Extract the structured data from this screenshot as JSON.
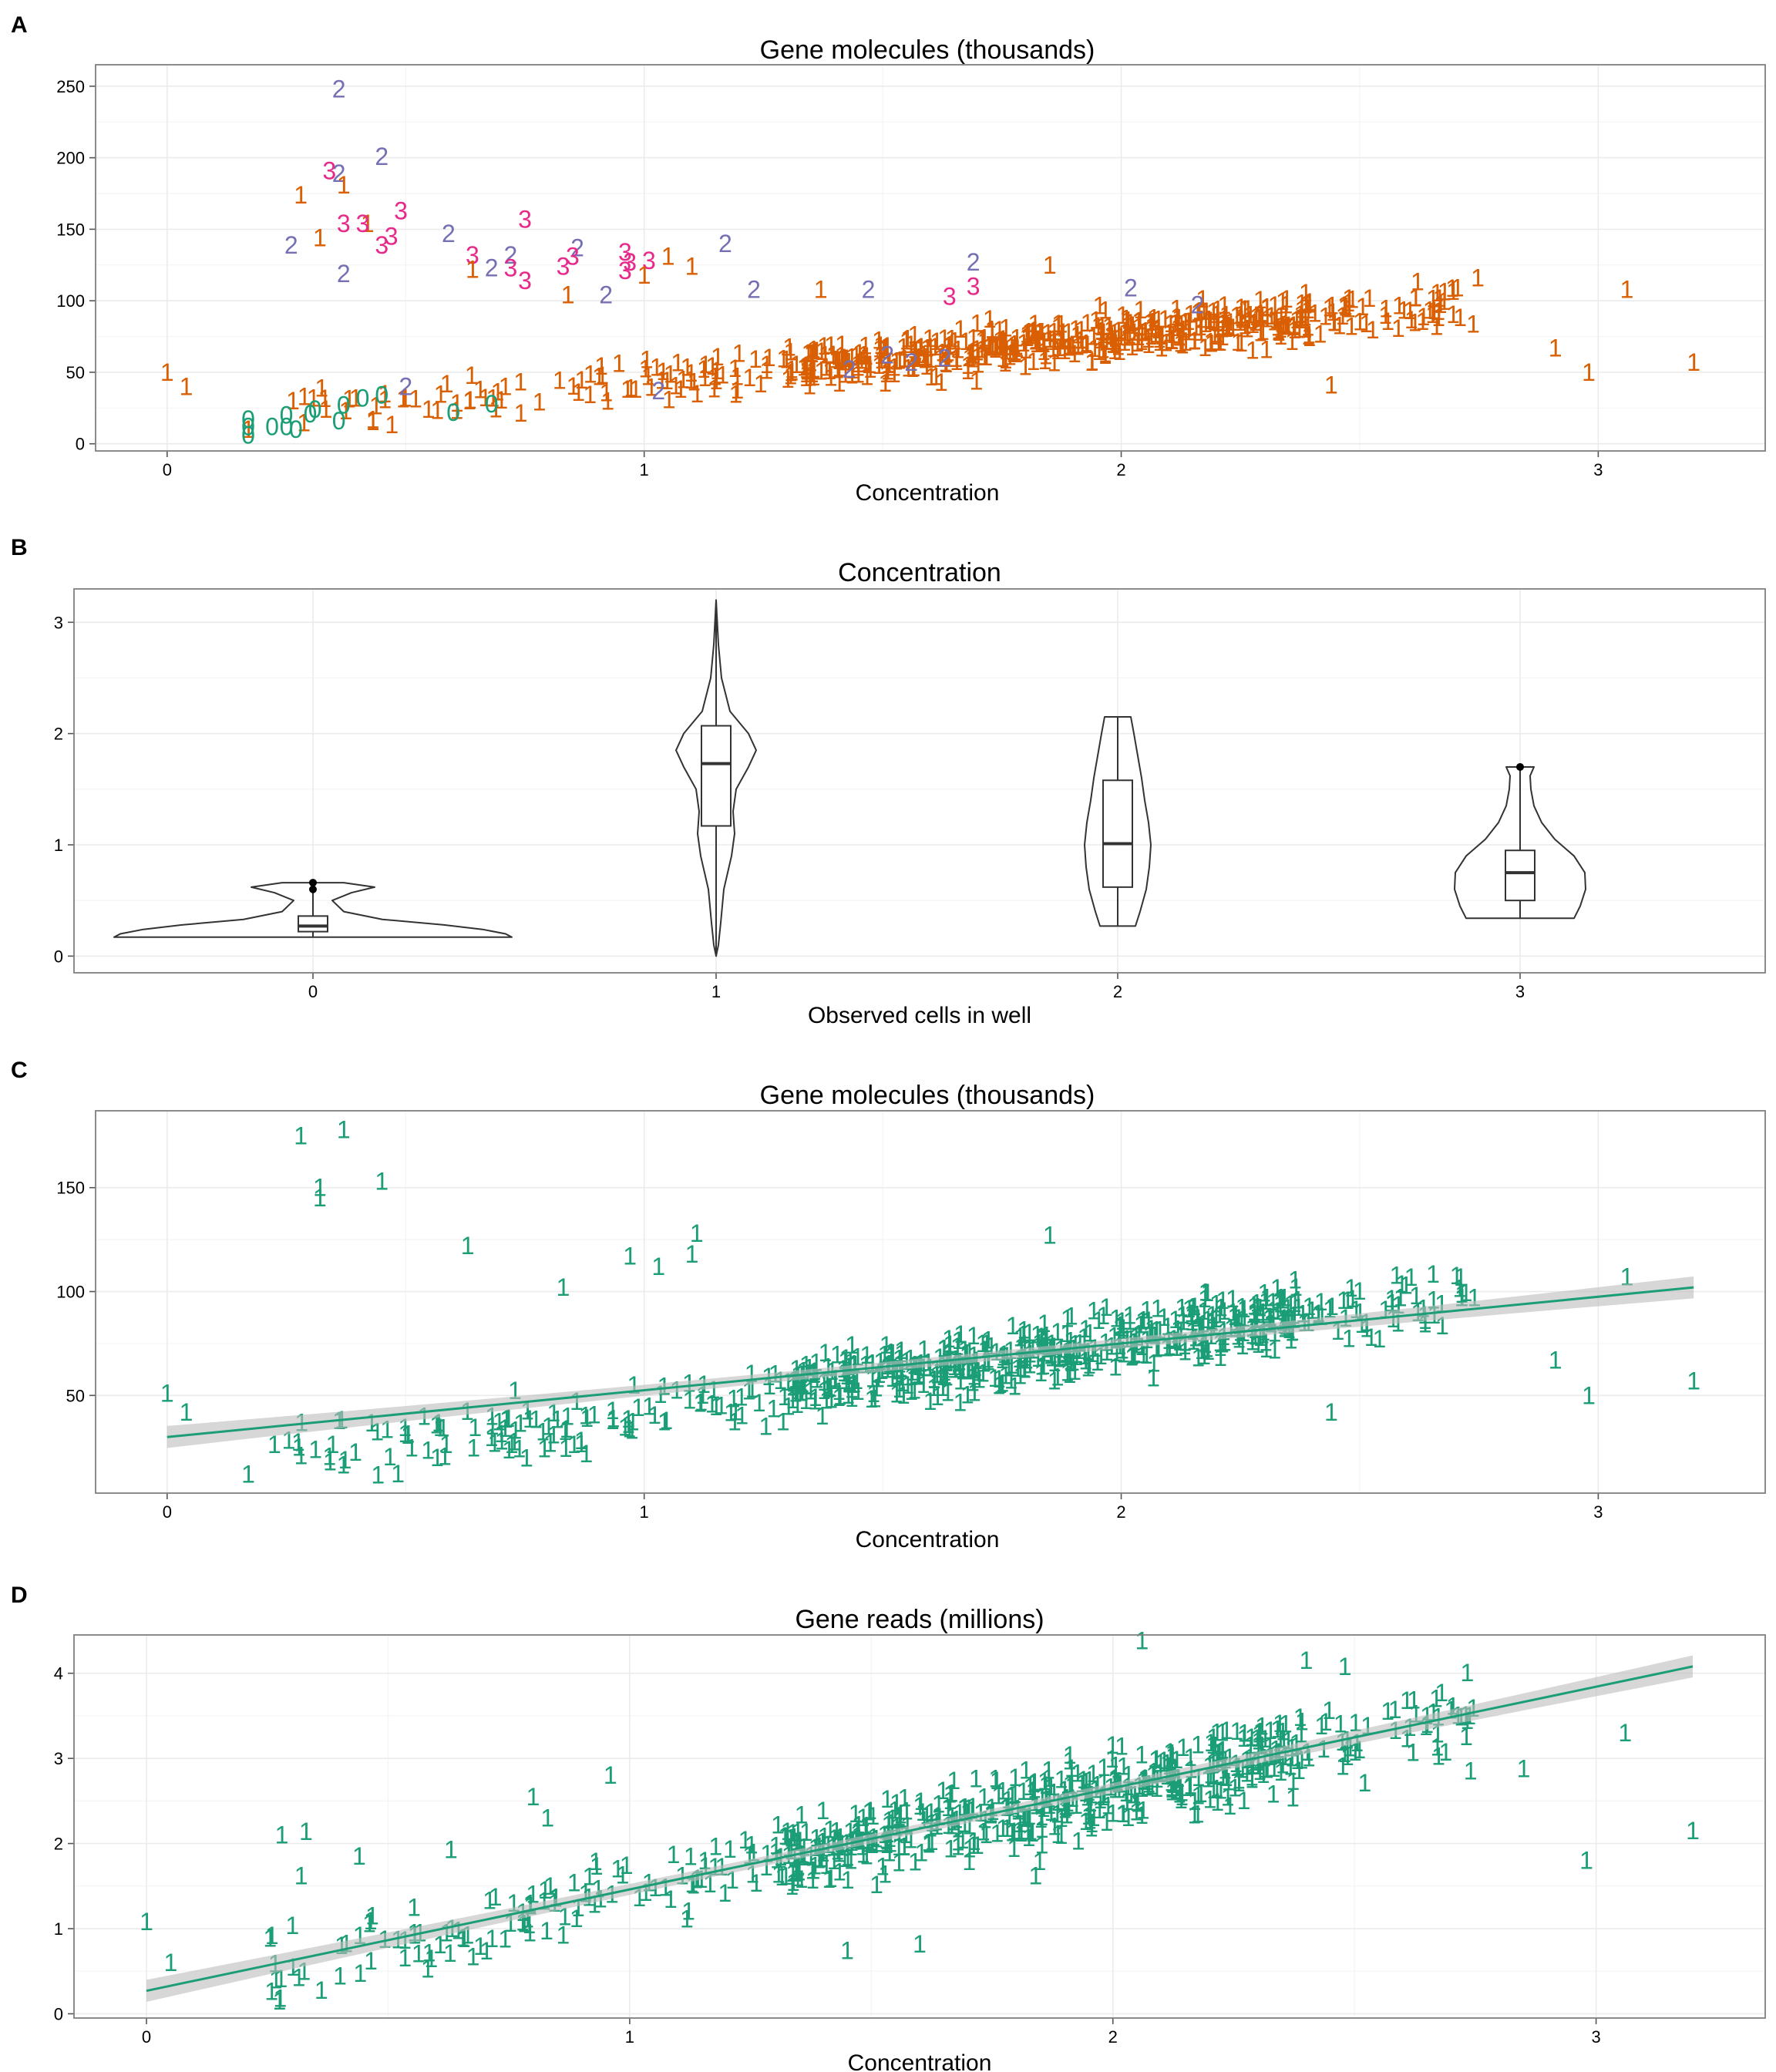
{
  "colors": {
    "green": "#1b9e77",
    "orange": "#d95f02",
    "purple": "#7570b3",
    "magenta": "#e7298a",
    "grid": "#ebebeb",
    "border": "#7f7f7f",
    "band": "#bdbdbd"
  },
  "chart_data": [
    {
      "panel": "A",
      "type": "scatter",
      "title": "Gene molecules (thousands)",
      "xlabel": "Concentration",
      "ylabel": "",
      "xlim": [
        -0.15,
        3.35
      ],
      "ylim": [
        -5,
        265
      ],
      "xticks": [
        "0",
        "1",
        "2",
        "3"
      ],
      "yticks": [
        "0",
        "50",
        "100",
        "150",
        "200",
        "250"
      ],
      "grid": true,
      "marker_note": "points drawn as the observed cell count label",
      "labeled_points": [
        {
          "x": 0.36,
          "y": 248,
          "label": "2"
        },
        {
          "x": 0.45,
          "y": 201,
          "label": "2"
        },
        {
          "x": 0.36,
          "y": 189,
          "label": "2"
        },
        {
          "x": 0.34,
          "y": 191,
          "label": "3"
        },
        {
          "x": 0.37,
          "y": 181,
          "label": "1"
        },
        {
          "x": 0.28,
          "y": 174,
          "label": "1"
        },
        {
          "x": 0.49,
          "y": 163,
          "label": "3"
        },
        {
          "x": 0.42,
          "y": 154,
          "label": "1"
        },
        {
          "x": 0.41,
          "y": 154,
          "label": "3"
        },
        {
          "x": 0.37,
          "y": 154,
          "label": "3"
        },
        {
          "x": 0.47,
          "y": 145,
          "label": "3"
        },
        {
          "x": 0.45,
          "y": 139,
          "label": "3"
        },
        {
          "x": 0.26,
          "y": 139,
          "label": "2"
        },
        {
          "x": 0.32,
          "y": 144,
          "label": "1"
        },
        {
          "x": 0.59,
          "y": 147,
          "label": "2"
        },
        {
          "x": 0.75,
          "y": 157,
          "label": "3"
        },
        {
          "x": 0.64,
          "y": 132,
          "label": "3"
        },
        {
          "x": 0.72,
          "y": 132,
          "label": "2"
        },
        {
          "x": 0.68,
          "y": 123,
          "label": "2"
        },
        {
          "x": 0.72,
          "y": 123,
          "label": "3"
        },
        {
          "x": 0.75,
          "y": 114,
          "label": "3"
        },
        {
          "x": 0.37,
          "y": 119,
          "label": "2"
        },
        {
          "x": 0.64,
          "y": 122,
          "label": "1"
        },
        {
          "x": 0.86,
          "y": 137,
          "label": "2"
        },
        {
          "x": 0.85,
          "y": 131,
          "label": "3"
        },
        {
          "x": 0.83,
          "y": 124,
          "label": "3"
        },
        {
          "x": 0.84,
          "y": 104,
          "label": "1"
        },
        {
          "x": 0.92,
          "y": 104,
          "label": "2"
        },
        {
          "x": 0.96,
          "y": 134,
          "label": "3"
        },
        {
          "x": 0.97,
          "y": 127,
          "label": "3"
        },
        {
          "x": 0.96,
          "y": 121,
          "label": "3"
        },
        {
          "x": 1.01,
          "y": 128,
          "label": "3"
        },
        {
          "x": 1.0,
          "y": 118,
          "label": "1"
        },
        {
          "x": 1.05,
          "y": 131,
          "label": "1"
        },
        {
          "x": 1.1,
          "y": 124,
          "label": "1"
        },
        {
          "x": 1.17,
          "y": 140,
          "label": "2"
        },
        {
          "x": 1.23,
          "y": 108,
          "label": "2"
        },
        {
          "x": 1.37,
          "y": 108,
          "label": "1"
        },
        {
          "x": 1.47,
          "y": 108,
          "label": "2"
        },
        {
          "x": 1.64,
          "y": 103,
          "label": "3"
        },
        {
          "x": 1.69,
          "y": 110,
          "label": "3"
        },
        {
          "x": 1.69,
          "y": 127,
          "label": "2"
        },
        {
          "x": 1.85,
          "y": 125,
          "label": "1"
        },
        {
          "x": 2.02,
          "y": 109,
          "label": "2"
        },
        {
          "x": 2.16,
          "y": 97,
          "label": "2"
        },
        {
          "x": 1.43,
          "y": 52,
          "label": "2"
        },
        {
          "x": 1.56,
          "y": 57,
          "label": "2"
        },
        {
          "x": 1.51,
          "y": 62,
          "label": "2"
        },
        {
          "x": 1.63,
          "y": 60,
          "label": "2"
        },
        {
          "x": 1.03,
          "y": 37,
          "label": "2"
        },
        {
          "x": 0.5,
          "y": 40,
          "label": "2"
        },
        {
          "x": 0.0,
          "y": 50,
          "label": "1"
        },
        {
          "x": 0.04,
          "y": 40,
          "label": "1"
        },
        {
          "x": 0.17,
          "y": 10,
          "label": "1"
        },
        {
          "x": 0.17,
          "y": 17,
          "label": "0"
        },
        {
          "x": 0.17,
          "y": 12,
          "label": "0"
        },
        {
          "x": 0.17,
          "y": 6,
          "label": "0"
        },
        {
          "x": 0.22,
          "y": 12,
          "label": "0"
        },
        {
          "x": 0.25,
          "y": 12,
          "label": "0"
        },
        {
          "x": 0.25,
          "y": 20,
          "label": "0"
        },
        {
          "x": 0.27,
          "y": 10,
          "label": "0"
        },
        {
          "x": 0.3,
          "y": 21,
          "label": "0"
        },
        {
          "x": 0.31,
          "y": 24,
          "label": "0"
        },
        {
          "x": 0.36,
          "y": 16,
          "label": "0"
        },
        {
          "x": 0.37,
          "y": 27,
          "label": "0"
        },
        {
          "x": 0.41,
          "y": 32,
          "label": "0"
        },
        {
          "x": 0.45,
          "y": 34,
          "label": "0"
        },
        {
          "x": 0.6,
          "y": 22,
          "label": "0"
        },
        {
          "x": 0.68,
          "y": 28,
          "label": "0"
        },
        {
          "x": 3.06,
          "y": 108,
          "label": "1"
        },
        {
          "x": 3.2,
          "y": 57,
          "label": "1"
        },
        {
          "x": 2.98,
          "y": 50,
          "label": "1"
        },
        {
          "x": 2.91,
          "y": 67,
          "label": "1"
        },
        {
          "x": 2.44,
          "y": 41,
          "label": "1"
        }
      ],
      "dense_cloud_note": "several hundred orange '1' points rising from about 20 at x=0.2 to about 90 at x=2.4"
    },
    {
      "panel": "B",
      "type": "violin",
      "title": "Concentration",
      "xlabel": "Observed cells in well",
      "ylabel": "",
      "ylim": [
        -0.15,
        3.3
      ],
      "categories": [
        "0",
        "1",
        "2",
        "3"
      ],
      "yticks": [
        "0",
        "1",
        "2",
        "3"
      ],
      "grid": true,
      "groups": [
        {
          "label": "0",
          "min": 0.17,
          "q1": 0.22,
          "median": 0.27,
          "q3": 0.36,
          "max": 0.66,
          "outliers": [
            0.6,
            0.66
          ]
        },
        {
          "label": "1",
          "min": 0.0,
          "q1": 1.17,
          "median": 1.73,
          "q3": 2.07,
          "max": 3.2,
          "outliers": []
        },
        {
          "label": "2",
          "min": 0.27,
          "q1": 0.62,
          "median": 1.01,
          "q3": 1.58,
          "max": 2.15,
          "outliers": []
        },
        {
          "label": "3",
          "min": 0.34,
          "q1": 0.5,
          "median": 0.75,
          "q3": 0.95,
          "max": 1.7,
          "outliers": [
            1.7
          ]
        }
      ]
    },
    {
      "panel": "C",
      "type": "scatter",
      "title": "Gene molecules (thousands)",
      "xlabel": "Concentration",
      "ylabel": "",
      "xlim": [
        -0.15,
        3.35
      ],
      "ylim": [
        3,
        187
      ],
      "xticks": [
        "0",
        "1",
        "2",
        "3"
      ],
      "yticks": [
        "50",
        "100",
        "150"
      ],
      "grid": true,
      "point_label": "1",
      "fit_line": {
        "x": [
          0.0,
          3.2
        ],
        "y": [
          30,
          102
        ]
      },
      "labeled_points": [
        {
          "x": 0.28,
          "y": 175
        },
        {
          "x": 0.37,
          "y": 178
        },
        {
          "x": 0.32,
          "y": 150
        },
        {
          "x": 0.32,
          "y": 145
        },
        {
          "x": 0.45,
          "y": 153
        },
        {
          "x": 0.63,
          "y": 122
        },
        {
          "x": 0.83,
          "y": 102
        },
        {
          "x": 0.97,
          "y": 117
        },
        {
          "x": 1.03,
          "y": 112
        },
        {
          "x": 1.1,
          "y": 118
        },
        {
          "x": 1.11,
          "y": 128
        },
        {
          "x": 1.85,
          "y": 127
        },
        {
          "x": 0.0,
          "y": 51
        },
        {
          "x": 0.04,
          "y": 42
        },
        {
          "x": 0.17,
          "y": 12
        },
        {
          "x": 3.06,
          "y": 107
        },
        {
          "x": 3.2,
          "y": 57
        },
        {
          "x": 2.98,
          "y": 50
        },
        {
          "x": 2.91,
          "y": 67
        },
        {
          "x": 2.44,
          "y": 42
        },
        {
          "x": 2.74,
          "y": 97
        }
      ]
    },
    {
      "panel": "D",
      "type": "scatter",
      "title": "Gene reads (millions)",
      "xlabel": "Concentration",
      "ylabel": "",
      "xlim": [
        -0.15,
        3.35
      ],
      "ylim": [
        -0.05,
        4.45
      ],
      "xticks": [
        "0",
        "1",
        "2",
        "3"
      ],
      "yticks": [
        "0",
        "1",
        "2",
        "3",
        "4"
      ],
      "grid": true,
      "point_label": "1",
      "fit_line": {
        "x": [
          0.0,
          3.2
        ],
        "y": [
          0.27,
          4.08
        ]
      },
      "labeled_points": [
        {
          "x": 0.0,
          "y": 1.08
        },
        {
          "x": 0.05,
          "y": 0.6
        },
        {
          "x": 0.28,
          "y": 2.1
        },
        {
          "x": 0.33,
          "y": 2.14
        },
        {
          "x": 0.32,
          "y": 1.62
        },
        {
          "x": 0.44,
          "y": 1.85
        },
        {
          "x": 0.63,
          "y": 1.93
        },
        {
          "x": 0.8,
          "y": 2.55
        },
        {
          "x": 0.83,
          "y": 2.3
        },
        {
          "x": 0.96,
          "y": 2.8
        },
        {
          "x": 1.84,
          "y": 1.62
        },
        {
          "x": 1.6,
          "y": 0.82
        },
        {
          "x": 1.45,
          "y": 0.74
        },
        {
          "x": 2.06,
          "y": 4.38
        },
        {
          "x": 2.4,
          "y": 4.15
        },
        {
          "x": 2.48,
          "y": 4.08
        },
        {
          "x": 3.06,
          "y": 3.3
        },
        {
          "x": 3.2,
          "y": 2.15
        },
        {
          "x": 2.98,
          "y": 1.8
        },
        {
          "x": 2.85,
          "y": 2.88
        },
        {
          "x": 2.74,
          "y": 2.85
        }
      ]
    }
  ]
}
